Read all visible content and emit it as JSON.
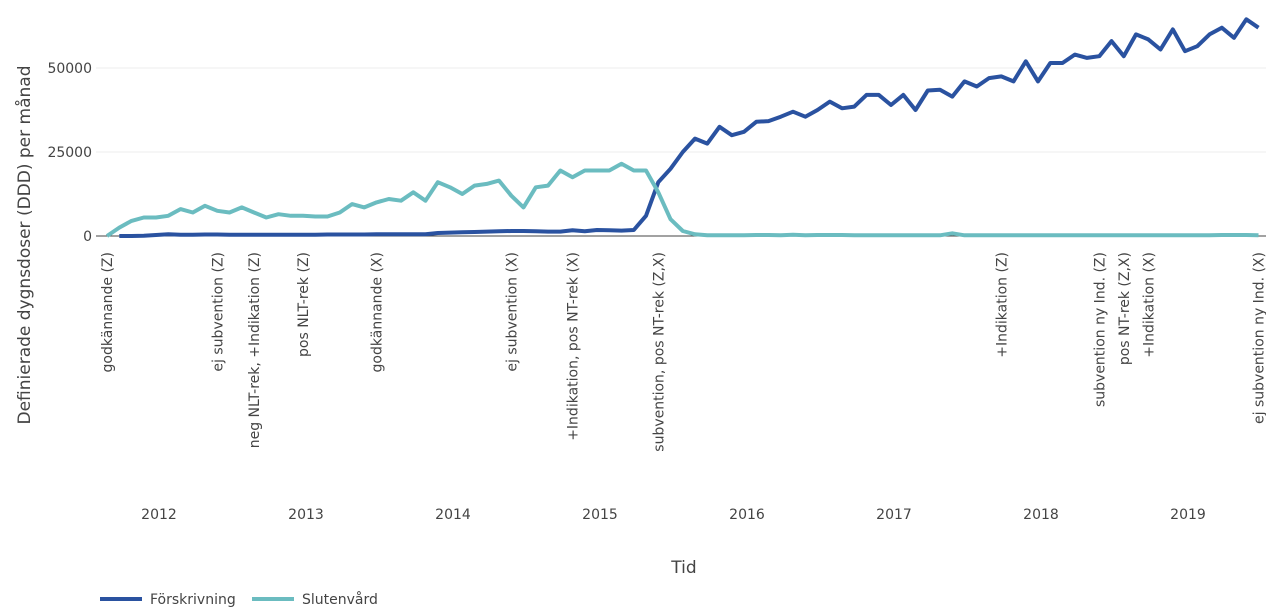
{
  "chart_data": {
    "type": "line",
    "y_label": "Definierade dygnsdoser (DDD) per månad",
    "x_label": "Tid",
    "categories": [
      null,
      null,
      null,
      null,
      "2012",
      null,
      null,
      null,
      null,
      null,
      null,
      null,
      null,
      null,
      null,
      null,
      "2013",
      null,
      null,
      null,
      null,
      null,
      null,
      null,
      null,
      null,
      null,
      null,
      "2014",
      null,
      null,
      null,
      null,
      null,
      null,
      null,
      null,
      null,
      null,
      null,
      "2015",
      null,
      null,
      null,
      null,
      null,
      null,
      null,
      null,
      null,
      null,
      null,
      "2016",
      null,
      null,
      null,
      null,
      null,
      null,
      null,
      null,
      null,
      null,
      null,
      "2017",
      null,
      null,
      null,
      null,
      null,
      null,
      null,
      null,
      null,
      null,
      null,
      "2018",
      null,
      null,
      null,
      null,
      null,
      null,
      null,
      null,
      null,
      null,
      null,
      "2019",
      null,
      null,
      null,
      null,
      null,
      null
    ],
    "series": [
      {
        "name": "Förskrivning",
        "color": "#2a52a0",
        "values": [
          null,
          0,
          0,
          100,
          300,
          500,
          400,
          400,
          450,
          450,
          400,
          400,
          400,
          400,
          400,
          400,
          400,
          400,
          450,
          450,
          450,
          450,
          500,
          500,
          500,
          500,
          500,
          900,
          1000,
          1100,
          1200,
          1300,
          1400,
          1500,
          1500,
          1400,
          1300,
          1300,
          1700,
          1400,
          1800,
          1700,
          1600,
          1800,
          6000,
          16000,
          20000,
          25000,
          29000,
          27500,
          32500,
          30000,
          31000,
          34000,
          34200,
          35500,
          37000,
          35500,
          37500,
          40000,
          38000,
          38500,
          42000,
          42000,
          39000,
          42000,
          37500,
          43300,
          43500,
          41500,
          46000,
          44500,
          47000,
          47500,
          46000,
          52000,
          46000,
          51500,
          51500,
          54000,
          53000,
          53500,
          58000,
          53500,
          60000,
          58500,
          55500,
          61500,
          55000,
          56500,
          60000,
          62000,
          59000,
          64500,
          62000
        ]
      },
      {
        "name": "Slutenvård",
        "color": "#6bbcc0",
        "values": [
          0,
          2500,
          4500,
          5500,
          5500,
          6000,
          8000,
          7000,
          9000,
          7500,
          7000,
          8500,
          7000,
          5500,
          6500,
          6000,
          6000,
          5800,
          5800,
          7000,
          9500,
          8500,
          10000,
          11000,
          10500,
          13000,
          10500,
          16000,
          14500,
          12500,
          15000,
          15500,
          16500,
          12000,
          8500,
          14500,
          15000,
          19500,
          17500,
          19500,
          19500,
          19500,
          21500,
          19500,
          19500,
          13000,
          5000,
          1500,
          500,
          200,
          200,
          200,
          200,
          300,
          300,
          200,
          400,
          200,
          300,
          300,
          300,
          200,
          200,
          200,
          200,
          200,
          200,
          200,
          200,
          800,
          200,
          200,
          200,
          200,
          200,
          200,
          200,
          200,
          200,
          200,
          200,
          200,
          200,
          200,
          200,
          200,
          200,
          200,
          200,
          200,
          200,
          300,
          300,
          300,
          200
        ]
      }
    ],
    "annotations": [
      {
        "text": "godkännande (Z)",
        "x": 0
      },
      {
        "text": "ej subvention (Z)",
        "x": 9
      },
      {
        "text": "neg NLT-rek, +Indikation (Z)",
        "x": 12
      },
      {
        "text": "pos NLT-rek (Z)",
        "x": 16
      },
      {
        "text": "godkännande (X)",
        "x": 22
      },
      {
        "text": "ej subvention (X)",
        "x": 33
      },
      {
        "text": "+Indikation, pos NT-rek (X)",
        "x": 38
      },
      {
        "text": "subvention, pos NT-rek (Z,X)",
        "x": 45
      },
      {
        "text": "+Indikation (Z)",
        "x": 73
      },
      {
        "text": "subvention ny Ind. (Z)",
        "x": 81
      },
      {
        "text": "pos NT-rek (Z,X)",
        "x": 83
      },
      {
        "text": "+Indikation (X)",
        "x": 85
      },
      {
        "text": "ej subvention ny Ind. (X)",
        "x": 94
      }
    ],
    "ylim": [
      -2500,
      65000
    ],
    "yticks": [
      0,
      25000,
      50000
    ],
    "grid": true
  }
}
